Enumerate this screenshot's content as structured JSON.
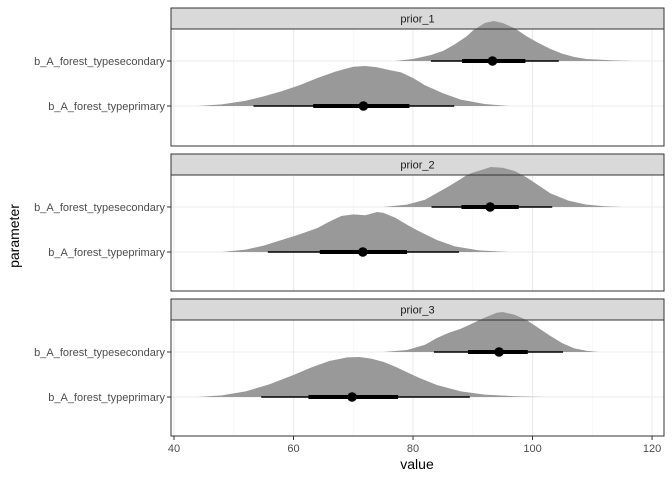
{
  "chart_data": {
    "type": "area",
    "subtype": "halfeye-density-with-interval",
    "xlabel": "value",
    "ylabel": "parameter",
    "xlim": [
      39.5,
      122
    ],
    "x_ticks": [
      40,
      60,
      80,
      100,
      120
    ],
    "x_tick_labels": [
      "40",
      "60",
      "80",
      "100",
      "120"
    ],
    "grid": true,
    "parameters": [
      "b_A_forest_typesecondary",
      "b_A_forest_typeprimary"
    ],
    "colors": {
      "density_fill": "#999999",
      "interval": "#000000",
      "panel_border": "#333333",
      "strip_fill": "#d9d9d9",
      "grid_major": "#ebebeb",
      "grid_minor": "#f3f3f3"
    },
    "panels": [
      {
        "name": "prior_1",
        "series": [
          {
            "parameter": "b_A_forest_typesecondary",
            "point": 93.3,
            "interval_66": [
              88.2,
              98.8
            ],
            "interval_95": [
              83.0,
              104.4
            ],
            "density": {
              "x": [
                77,
                80,
                83,
                85,
                87,
                89,
                90,
                92,
                93.5,
                95,
                97,
                99,
                101,
                103,
                105,
                107,
                109,
                113,
                117
              ],
              "y": [
                0.0,
                0.05,
                0.15,
                0.25,
                0.42,
                0.62,
                0.76,
                0.95,
                1.0,
                0.95,
                0.82,
                0.62,
                0.45,
                0.3,
                0.18,
                0.1,
                0.05,
                0.02,
                0.0
              ]
            }
          },
          {
            "parameter": "b_A_forest_typeprimary",
            "point": 71.7,
            "interval_66": [
              63.3,
              79.4
            ],
            "interval_95": [
              53.3,
              86.9
            ],
            "density": {
              "x": [
                44,
                48,
                52,
                55,
                58,
                61,
                64,
                67,
                70,
                72,
                74,
                76,
                78,
                80,
                82,
                85,
                88,
                92,
                96
              ],
              "y": [
                0.0,
                0.04,
                0.13,
                0.24,
                0.37,
                0.52,
                0.7,
                0.86,
                0.98,
                1.0,
                0.97,
                0.9,
                0.84,
                0.7,
                0.52,
                0.32,
                0.16,
                0.05,
                0.0
              ]
            }
          }
        ]
      },
      {
        "name": "prior_2",
        "series": [
          {
            "parameter": "b_A_forest_typesecondary",
            "point": 92.9,
            "interval_66": [
              88.1,
              97.7
            ],
            "interval_95": [
              83.1,
              103.3
            ],
            "density": {
              "x": [
                75,
                79,
                82,
                84,
                86,
                88,
                89,
                90,
                92,
                93,
                95,
                97,
                99,
                101,
                103,
                106,
                109,
                112,
                115
              ],
              "y": [
                0.0,
                0.06,
                0.18,
                0.35,
                0.52,
                0.7,
                0.8,
                0.86,
                0.95,
                1.0,
                0.98,
                0.9,
                0.74,
                0.54,
                0.34,
                0.16,
                0.06,
                0.02,
                0.0
              ]
            }
          },
          {
            "parameter": "b_A_forest_typeprimary",
            "point": 71.6,
            "interval_66": [
              64.4,
              79.0
            ],
            "interval_95": [
              55.7,
              87.7
            ],
            "density": {
              "x": [
                48,
                52,
                55,
                58,
                61,
                64,
                66,
                68,
                70,
                72,
                74,
                75,
                77,
                79,
                81,
                84,
                87,
                91,
                96
              ],
              "y": [
                0.0,
                0.06,
                0.16,
                0.3,
                0.44,
                0.6,
                0.76,
                0.9,
                0.94,
                0.92,
                1.0,
                0.98,
                0.86,
                0.68,
                0.52,
                0.3,
                0.14,
                0.04,
                0.0
              ]
            }
          }
        ]
      },
      {
        "name": "prior_3",
        "series": [
          {
            "parameter": "b_A_forest_typesecondary",
            "point": 94.4,
            "interval_66": [
              89.2,
              99.2
            ],
            "interval_95": [
              83.5,
              105.1
            ],
            "density": {
              "x": [
                75,
                79,
                82,
                84,
                86,
                88,
                90,
                92,
                94,
                95,
                97,
                99,
                101,
                103,
                105,
                107,
                109,
                111
              ],
              "y": [
                0.0,
                0.05,
                0.18,
                0.35,
                0.48,
                0.58,
                0.72,
                0.86,
                0.98,
                1.0,
                0.93,
                0.8,
                0.6,
                0.4,
                0.22,
                0.09,
                0.03,
                0.0
              ]
            }
          },
          {
            "parameter": "b_A_forest_typeprimary",
            "point": 69.8,
            "interval_66": [
              62.5,
              77.5
            ],
            "interval_95": [
              54.6,
              89.5
            ],
            "density": {
              "x": [
                44,
                48,
                52,
                56,
                60,
                63,
                66,
                69,
                71,
                73,
                75,
                77,
                79,
                81,
                84,
                88,
                92,
                97,
                102
              ],
              "y": [
                0.0,
                0.04,
                0.14,
                0.32,
                0.55,
                0.74,
                0.9,
                0.99,
                1.0,
                0.96,
                0.88,
                0.76,
                0.62,
                0.48,
                0.3,
                0.14,
                0.06,
                0.02,
                0.0
              ]
            }
          }
        ]
      }
    ]
  }
}
